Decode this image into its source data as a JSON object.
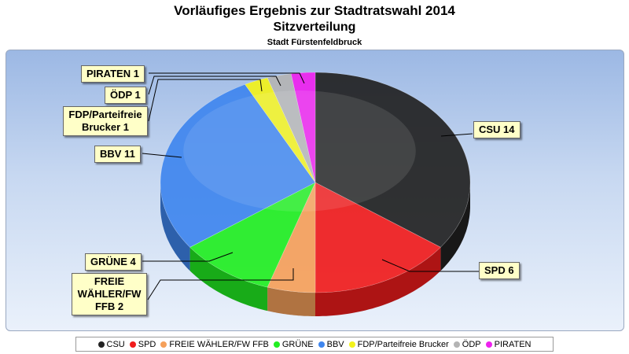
{
  "chart_data": {
    "type": "pie",
    "title": "Vorläufiges Ergebnis zur Stadtratswahl 2014",
    "subtitle": "Sitzverteilung",
    "subtitle2": "Stadt Fürstenfeldbruck",
    "legend_position": "bottom",
    "slices": [
      {
        "name": "CSU",
        "value": 14,
        "label": "CSU 14",
        "color": "#222222"
      },
      {
        "name": "SPD",
        "value": 6,
        "label": "SPD 6",
        "color": "#f01c1c"
      },
      {
        "name": "FREIE WÄHLER/FW FFB",
        "value": 2,
        "label": "FREIE WÄHLER/FW FFB 2",
        "color": "#f5a05a"
      },
      {
        "name": "GRÜNE",
        "value": 4,
        "label": "GRÜNE 4",
        "color": "#22ee22"
      },
      {
        "name": "BBV",
        "value": 11,
        "label": "BBV 11",
        "color": "#3f86ee"
      },
      {
        "name": "FDP/Parteifreie Brucker",
        "value": 1,
        "label": "FDP/Parteifreie Brucker 1",
        "color": "#f2f21a"
      },
      {
        "name": "ÖDP",
        "value": 1,
        "label": "ÖDP 1",
        "color": "#b4b4b4"
      },
      {
        "name": "PIRATEN",
        "value": 1,
        "label": "PIRATEN 1",
        "color": "#ee22ee"
      }
    ]
  }
}
